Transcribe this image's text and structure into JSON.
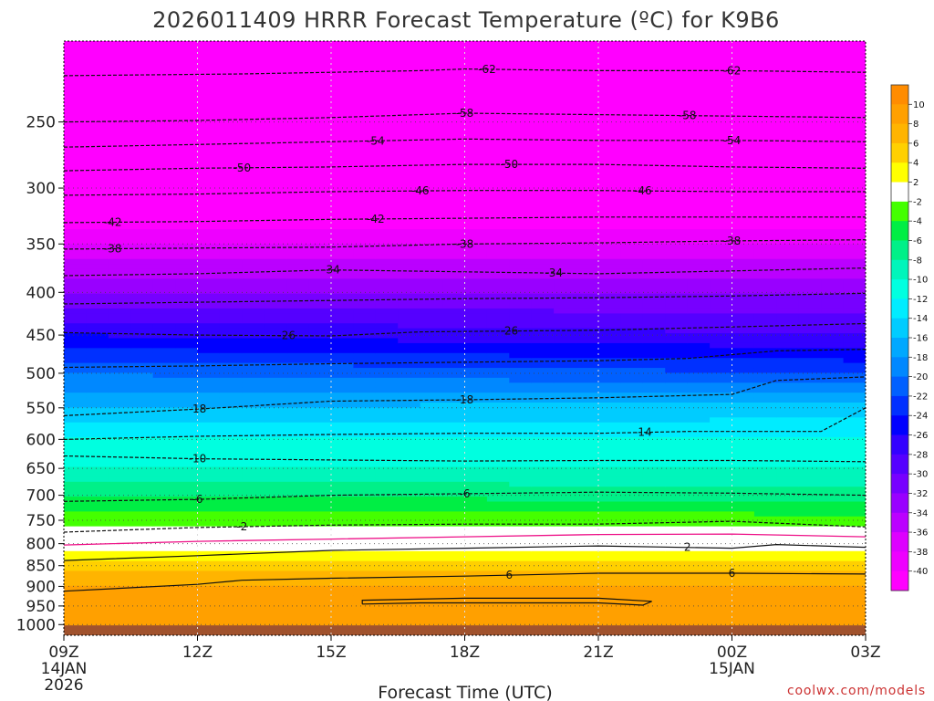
{
  "chart_data": {
    "type": "heatmap",
    "title": "2026011409 HRRR Forecast Temperature (ºC) for K9B6",
    "xlabel": "Forecast Time (UTC)",
    "ylabel": "",
    "credit": "coolwx.com/models",
    "x_ticks": [
      {
        "hour": 0,
        "label": "09Z",
        "sub1": "14JAN",
        "sub2": "2026"
      },
      {
        "hour": 3,
        "label": "12Z",
        "sub1": "",
        "sub2": ""
      },
      {
        "hour": 6,
        "label": "15Z",
        "sub1": "",
        "sub2": ""
      },
      {
        "hour": 9,
        "label": "18Z",
        "sub1": "",
        "sub2": ""
      },
      {
        "hour": 12,
        "label": "21Z",
        "sub1": "",
        "sub2": ""
      },
      {
        "hour": 15,
        "label": "00Z",
        "sub1": "15JAN",
        "sub2": ""
      },
      {
        "hour": 18,
        "label": "03Z",
        "sub1": "",
        "sub2": ""
      }
    ],
    "xlim": [
      0,
      18
    ],
    "y_ticks": [
      250,
      300,
      350,
      400,
      450,
      500,
      550,
      600,
      650,
      700,
      750,
      800,
      850,
      900,
      950,
      1000
    ],
    "ylim": [
      200,
      1030
    ],
    "y_scale": "log",
    "surface_pressure": 1000,
    "grid": "dotted",
    "colorbar": {
      "ticks": [
        10,
        8,
        6,
        4,
        2,
        -2,
        -4,
        -6,
        -8,
        -10,
        -12,
        -14,
        -16,
        -18,
        -20,
        -22,
        -24,
        -26,
        -28,
        -30,
        -32,
        -34,
        -36,
        -38,
        -40
      ],
      "levels": [
        {
          "min": 10,
          "color": "#ff8c00"
        },
        {
          "min": 8,
          "color": "#ffa000"
        },
        {
          "min": 6,
          "color": "#ffb400"
        },
        {
          "min": 4,
          "color": "#ffd000"
        },
        {
          "min": 2,
          "color": "#ffff00"
        },
        {
          "min": -2,
          "color": "#ffffff"
        },
        {
          "min": -4,
          "color": "#44ff00"
        },
        {
          "min": -6,
          "color": "#00ee44"
        },
        {
          "min": -8,
          "color": "#00f088"
        },
        {
          "min": -10,
          "color": "#00f5bb"
        },
        {
          "min": -12,
          "color": "#00ffe0"
        },
        {
          "min": -14,
          "color": "#00ecff"
        },
        {
          "min": -16,
          "color": "#00ccff"
        },
        {
          "min": -18,
          "color": "#00a8ff"
        },
        {
          "min": -20,
          "color": "#0088ff"
        },
        {
          "min": -22,
          "color": "#0060ff"
        },
        {
          "min": -24,
          "color": "#0030ff"
        },
        {
          "min": -26,
          "color": "#0000ff"
        },
        {
          "min": -28,
          "color": "#3300ff"
        },
        {
          "min": -30,
          "color": "#5500ff"
        },
        {
          "min": -32,
          "color": "#7700ff"
        },
        {
          "min": -34,
          "color": "#9900ff"
        },
        {
          "min": -36,
          "color": "#bb00ff"
        },
        {
          "min": -38,
          "color": "#dd00ff"
        },
        {
          "min": -40,
          "color": "#ee00ff"
        },
        {
          "min": -999,
          "color": "#ff00ff"
        }
      ],
      "surface_color": "#a0522d"
    },
    "profile": {
      "pressure": [
        200,
        250,
        300,
        350,
        400,
        450,
        500,
        550,
        600,
        650,
        700,
        750,
        800,
        850,
        900,
        950,
        1000
      ],
      "temp_start": [
        -64,
        -58,
        -46,
        -38,
        -32,
        -26,
        -20,
        -16,
        -12,
        -10,
        -6,
        -3,
        1,
        5,
        8,
        9,
        10
      ],
      "temp_end": [
        -64,
        -58,
        -46,
        -38,
        -32,
        -28,
        -22,
        -15,
        -12,
        -10,
        -7,
        -3,
        1,
        5,
        8,
        9,
        10
      ]
    },
    "contours": [
      {
        "value": -62,
        "label": "-62",
        "points": [
          [
            0,
            220
          ],
          [
            4,
            219
          ],
          [
            8,
            217
          ],
          [
            9,
            216
          ],
          [
            12,
            217
          ],
          [
            15,
            217
          ],
          [
            18,
            218
          ]
        ],
        "labels_at": [
          9.5,
          15
        ]
      },
      {
        "value": -58,
        "label": "-58",
        "points": [
          [
            0,
            250
          ],
          [
            3,
            249
          ],
          [
            6,
            247
          ],
          [
            9,
            244
          ],
          [
            12,
            245
          ],
          [
            15,
            246
          ],
          [
            18,
            247
          ]
        ],
        "labels_at": [
          9,
          14
        ]
      },
      {
        "value": -54,
        "label": "-54",
        "points": [
          [
            0,
            268
          ],
          [
            3,
            266
          ],
          [
            6,
            264
          ],
          [
            9,
            262
          ],
          [
            12,
            263
          ],
          [
            15,
            263
          ],
          [
            18,
            264
          ]
        ],
        "labels_at": [
          7,
          15
        ]
      },
      {
        "value": -50,
        "label": "-50",
        "points": [
          [
            0,
            286
          ],
          [
            3,
            284
          ],
          [
            6,
            283
          ],
          [
            9,
            281
          ],
          [
            12,
            281
          ],
          [
            15,
            283
          ],
          [
            18,
            284
          ]
        ],
        "labels_at": [
          4,
          10
        ]
      },
      {
        "value": -46,
        "label": "-46",
        "points": [
          [
            0,
            306
          ],
          [
            3,
            305
          ],
          [
            6,
            303
          ],
          [
            9,
            302
          ],
          [
            12,
            302
          ],
          [
            15,
            303
          ],
          [
            18,
            303
          ]
        ],
        "labels_at": [
          8,
          13
        ]
      },
      {
        "value": -42,
        "label": "-42",
        "points": [
          [
            0,
            330
          ],
          [
            3,
            329
          ],
          [
            6,
            327
          ],
          [
            9,
            326
          ],
          [
            12,
            325
          ],
          [
            15,
            325
          ],
          [
            18,
            325
          ]
        ],
        "labels_at": [
          1.1,
          7
        ]
      },
      {
        "value": -38,
        "label": "-38",
        "points": [
          [
            0,
            355
          ],
          [
            3,
            354
          ],
          [
            6,
            353
          ],
          [
            9,
            350
          ],
          [
            12,
            349
          ],
          [
            15,
            347
          ],
          [
            18,
            346
          ]
        ],
        "labels_at": [
          1.1,
          9,
          15
        ]
      },
      {
        "value": -34,
        "label": "-34",
        "points": [
          [
            0,
            382
          ],
          [
            3,
            380
          ],
          [
            6,
            376
          ],
          [
            9,
            378
          ],
          [
            12,
            380
          ],
          [
            15,
            377
          ],
          [
            18,
            374
          ]
        ],
        "labels_at": [
          6,
          11
        ]
      },
      {
        "value": -30,
        "label": "",
        "points": [
          [
            0,
            413
          ],
          [
            3,
            411
          ],
          [
            6,
            409
          ],
          [
            9,
            407
          ],
          [
            12,
            406
          ],
          [
            15,
            404
          ],
          [
            18,
            401
          ]
        ],
        "labels_at": []
      },
      {
        "value": -26,
        "label": "-26",
        "points": [
          [
            0,
            447
          ],
          [
            3,
            450
          ],
          [
            6,
            451
          ],
          [
            8,
            446
          ],
          [
            12,
            444
          ],
          [
            15,
            440
          ],
          [
            18,
            436
          ]
        ],
        "labels_at": [
          5,
          10
        ]
      },
      {
        "value": -22,
        "label": "",
        "points": [
          [
            0,
            492
          ],
          [
            3,
            490
          ],
          [
            6,
            487
          ],
          [
            9,
            485
          ],
          [
            12,
            483
          ],
          [
            14,
            480
          ],
          [
            16,
            470
          ],
          [
            18,
            468
          ]
        ],
        "labels_at": []
      },
      {
        "value": -18,
        "label": "-18",
        "points": [
          [
            0,
            562
          ],
          [
            3,
            552
          ],
          [
            6,
            540
          ],
          [
            9,
            538
          ],
          [
            12,
            535
          ],
          [
            15,
            530
          ],
          [
            16,
            510
          ],
          [
            18,
            505
          ]
        ],
        "labels_at": [
          3,
          9
        ]
      },
      {
        "value": -14,
        "label": "-14",
        "points": [
          [
            0,
            600
          ],
          [
            3,
            595
          ],
          [
            6,
            592
          ],
          [
            9,
            590
          ],
          [
            12,
            590
          ],
          [
            14,
            587
          ],
          [
            17,
            587
          ],
          [
            18,
            550
          ]
        ],
        "labels_at": [
          13
        ]
      },
      {
        "value": -10,
        "label": "-10",
        "points": [
          [
            0,
            628
          ],
          [
            3,
            633
          ],
          [
            6,
            635
          ],
          [
            9,
            637
          ],
          [
            12,
            636
          ],
          [
            15,
            636
          ],
          [
            18,
            638
          ]
        ],
        "labels_at": [
          3
        ]
      },
      {
        "value": -6,
        "label": "-6",
        "points": [
          [
            0,
            712
          ],
          [
            3,
            708
          ],
          [
            6,
            700
          ],
          [
            9,
            697
          ],
          [
            12,
            694
          ],
          [
            15,
            696
          ],
          [
            18,
            700
          ]
        ],
        "labels_at": [
          3,
          9
        ]
      },
      {
        "value": -2,
        "label": "-2",
        "points": [
          [
            0,
            775
          ],
          [
            3,
            765
          ],
          [
            6,
            760
          ],
          [
            9,
            758
          ],
          [
            12,
            758
          ],
          [
            15,
            752
          ],
          [
            18,
            764
          ]
        ],
        "labels_at": [
          4
        ]
      }
    ],
    "freezing_line": {
      "value": 0,
      "color": "#ee1188",
      "points": [
        [
          0,
          803
        ],
        [
          3,
          795
        ],
        [
          6,
          790
        ],
        [
          9,
          785
        ],
        [
          12,
          780
        ],
        [
          15,
          779
        ],
        [
          18,
          785
        ]
      ]
    },
    "contour_plus2": {
      "value": 2,
      "label": "2",
      "points": [
        [
          0,
          838
        ],
        [
          3,
          827
        ],
        [
          6,
          815
        ],
        [
          9,
          810
        ],
        [
          12,
          805
        ],
        [
          15,
          810
        ],
        [
          16,
          802
        ],
        [
          18,
          808
        ]
      ],
      "labels_at": [
        14
      ]
    },
    "contour_plus6": {
      "value": 6,
      "label": "6",
      "points": [
        [
          0,
          912
        ],
        [
          3,
          895
        ],
        [
          4,
          885
        ],
        [
          6,
          880
        ],
        [
          9,
          875
        ],
        [
          12,
          868
        ],
        [
          15,
          868
        ],
        [
          18,
          870
        ]
      ],
      "labels_at": [
        10,
        15
      ]
    },
    "contour_plus10": {
      "value": 10,
      "label": "",
      "points": [
        [
          6.7,
          945
        ],
        [
          8,
          942
        ],
        [
          12,
          942
        ],
        [
          13,
          948
        ],
        [
          13.2,
          938
        ],
        [
          12,
          930
        ],
        [
          9,
          930
        ],
        [
          6.7,
          935
        ],
        [
          6.7,
          945
        ]
      ],
      "labels_at": []
    }
  }
}
